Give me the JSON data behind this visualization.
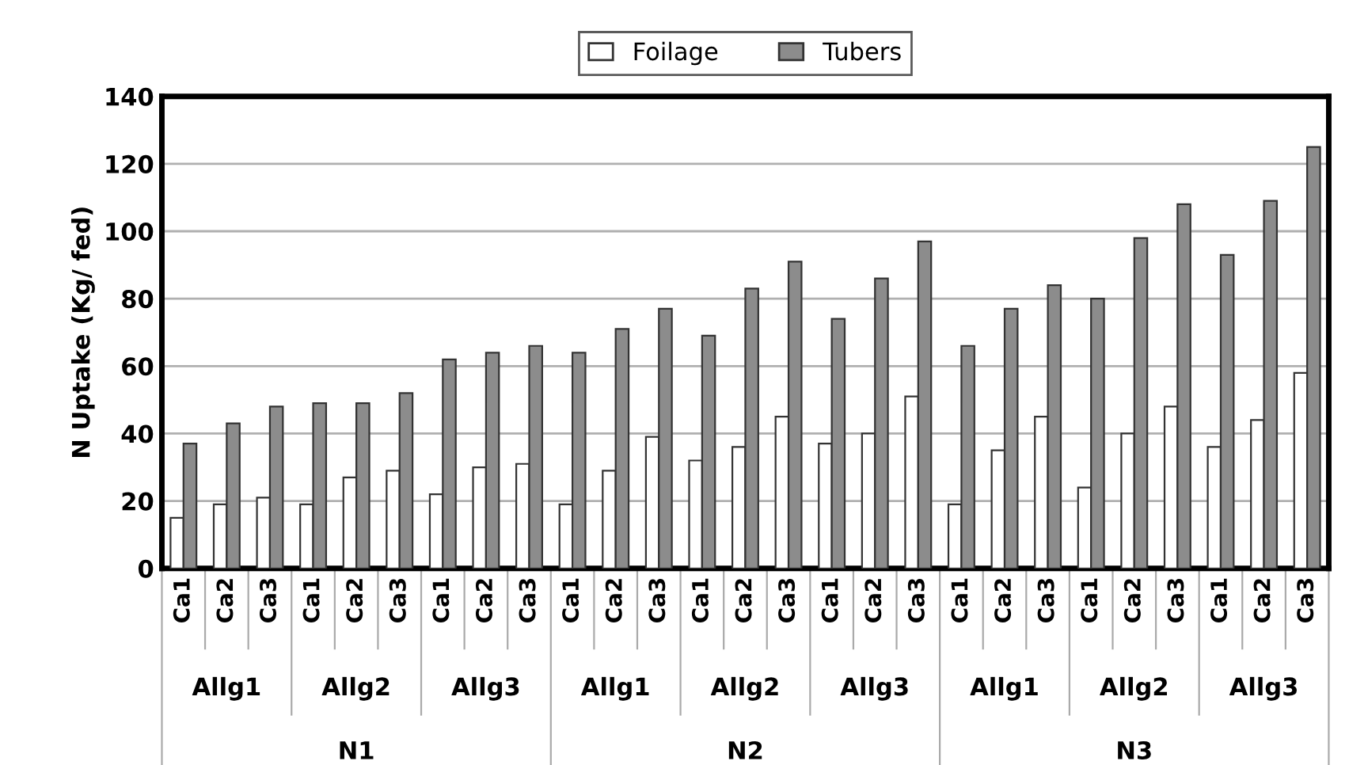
{
  "chart_data": {
    "type": "bar",
    "ylabel": "N Uptake (Kg/ fed)",
    "categories": [
      "Ca1",
      "Ca2",
      "Ca3",
      "Ca1",
      "Ca2",
      "Ca3",
      "Ca1",
      "Ca2",
      "Ca3",
      "Ca1",
      "Ca2",
      "Ca3",
      "Ca1",
      "Ca2",
      "Ca3",
      "Ca1",
      "Ca2",
      "Ca3",
      "Ca1",
      "Ca2",
      "Ca3",
      "Ca1",
      "Ca2",
      "Ca3",
      "Ca1",
      "Ca2",
      "Ca3"
    ],
    "series": [
      {
        "name": "Foilage",
        "color": "#ffffff",
        "values": [
          15,
          19,
          21,
          19,
          27,
          29,
          22,
          30,
          31,
          19,
          29,
          39,
          32,
          36,
          45,
          37,
          40,
          51,
          19,
          35,
          45,
          24,
          40,
          48,
          36,
          44,
          58
        ]
      },
      {
        "name": "Tubers",
        "color": "#8c8c8c",
        "values": [
          37,
          43,
          48,
          49,
          49,
          52,
          62,
          64,
          66,
          64,
          71,
          77,
          69,
          83,
          91,
          74,
          86,
          97,
          66,
          77,
          84,
          80,
          98,
          108,
          93,
          109,
          125
        ]
      }
    ],
    "annotations": [
      "Allg1",
      "Allg2",
      "Allg3",
      "Allg1",
      "Allg2",
      "Allg3",
      "Allg1",
      "Allg2",
      "Allg3",
      "N1",
      "N2",
      "N3"
    ],
    "ylim": [
      0,
      140
    ],
    "yticks": [
      0,
      20,
      40,
      60,
      80,
      100,
      120,
      140
    ],
    "grid": "y",
    "legend": "top"
  }
}
